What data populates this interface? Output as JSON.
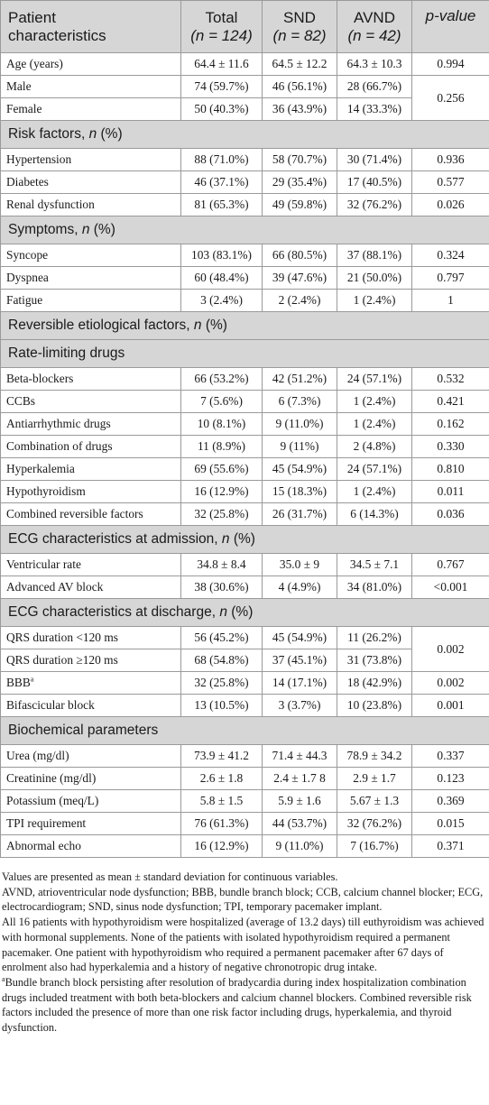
{
  "header": {
    "col0_line1": "Patient",
    "col0_line2": "characteristics",
    "total_line1": "Total",
    "total_line2": "(n = 124)",
    "snd_line1": "SND",
    "snd_line2": "(n = 82)",
    "avnd_line1": "AVND",
    "avnd_line2": "(n = 42)",
    "pvalue": "p-value"
  },
  "demographics": [
    {
      "label": "Age (years)",
      "total": "64.4 ± 11.6",
      "snd": "64.5 ± 12.2",
      "avnd": "64.3 ± 10.3",
      "p": "0.994"
    },
    {
      "label": "Male",
      "total": "74 (59.7%)",
      "snd": "46 (56.1%)",
      "avnd": "28 (66.7%)",
      "p": "0.256"
    },
    {
      "label": "Female",
      "total": "50 (40.3%)",
      "snd": "36 (43.9%)",
      "avnd": "14 (33.3%)",
      "p": ""
    }
  ],
  "risk_factors": {
    "title": "Risk factors, n (%)",
    "rows": [
      {
        "label": "Hypertension",
        "total": "88 (71.0%)",
        "snd": "58 (70.7%)",
        "avnd": "30 (71.4%)",
        "p": "0.936"
      },
      {
        "label": "Diabetes",
        "total": "46 (37.1%)",
        "snd": "29 (35.4%)",
        "avnd": "17 (40.5%)",
        "p": "0.577"
      },
      {
        "label": "Renal dysfunction",
        "total": "81 (65.3%)",
        "snd": "49 (59.8%)",
        "avnd": "32 (76.2%)",
        "p": "0.026"
      }
    ]
  },
  "symptoms": {
    "title": "Symptoms, n (%)",
    "rows": [
      {
        "label": "Syncope",
        "total": "103 (83.1%)",
        "snd": "66 (80.5%)",
        "avnd": "37 (88.1%)",
        "p": "0.324"
      },
      {
        "label": "Dyspnea",
        "total": "60 (48.4%)",
        "snd": "39 (47.6%)",
        "avnd": "21 (50.0%)",
        "p": "0.797"
      },
      {
        "label": "Fatigue",
        "total": "3 (2.4%)",
        "snd": "2 (2.4%)",
        "avnd": "1 (2.4%)",
        "p": "1"
      }
    ]
  },
  "reversible": {
    "title": "Reversible etiological factors, n (%)"
  },
  "rate_limiting": {
    "title": "Rate-limiting drugs",
    "rows": [
      {
        "label": "Beta-blockers",
        "total": "66 (53.2%)",
        "snd": "42 (51.2%)",
        "avnd": "24 (57.1%)",
        "p": "0.532"
      },
      {
        "label": "CCBs",
        "total": "7 (5.6%)",
        "snd": "6 (7.3%)",
        "avnd": "1 (2.4%)",
        "p": "0.421"
      },
      {
        "label": "Antiarrhythmic drugs",
        "total": "10 (8.1%)",
        "snd": "9 (11.0%)",
        "avnd": "1 (2.4%)",
        "p": "0.162"
      },
      {
        "label": "Combination of drugs",
        "total": "11 (8.9%)",
        "snd": "9 (11%)",
        "avnd": "2 (4.8%)",
        "p": "0.330"
      },
      {
        "label": "Hyperkalemia",
        "total": "69 (55.6%)",
        "snd": "45 (54.9%)",
        "avnd": "24 (57.1%)",
        "p": "0.810"
      },
      {
        "label": "Hypothyroidism",
        "total": "16 (12.9%)",
        "snd": "15 (18.3%)",
        "avnd": "1 (2.4%)",
        "p": "0.011"
      },
      {
        "label": "Combined reversible factors",
        "total": "32 (25.8%)",
        "snd": "26 (31.7%)",
        "avnd": "6 (14.3%)",
        "p": "0.036"
      }
    ]
  },
  "ecg_admission": {
    "title": "ECG characteristics at admission, n (%)",
    "rows": [
      {
        "label": "Ventricular rate",
        "total": "34.8 ± 8.4",
        "snd": "35.0 ± 9",
        "avnd": "34.5 ± 7.1",
        "p": "0.767"
      },
      {
        "label": "Advanced AV block",
        "total": "38 (30.6%)",
        "snd": "4 (4.9%)",
        "avnd": "34 (81.0%)",
        "p": "<0.001"
      }
    ]
  },
  "ecg_discharge": {
    "title": "ECG characteristics at discharge, n (%)",
    "rows": [
      {
        "label": "QRS duration <120 ms",
        "total": "56 (45.2%)",
        "snd": "45 (54.9%)",
        "avnd": "11 (26.2%)",
        "p": "0.002"
      },
      {
        "label": "QRS duration ≥120 ms",
        "total": "68 (54.8%)",
        "snd": "37 (45.1%)",
        "avnd": "31 (73.8%)",
        "p": ""
      },
      {
        "label": "BBB",
        "sup": "a",
        "total": "32 (25.8%)",
        "snd": "14 (17.1%)",
        "avnd": "18 (42.9%)",
        "p": "0.002"
      },
      {
        "label": "Bifascicular block",
        "total": "13 (10.5%)",
        "snd": "3 (3.7%)",
        "avnd": "10 (23.8%)",
        "p": "0.001"
      }
    ]
  },
  "biochemical": {
    "title": "Biochemical parameters",
    "rows": [
      {
        "label": "Urea (mg/dl)",
        "total": "73.9 ± 41.2",
        "snd": "71.4 ± 44.3",
        "avnd": "78.9 ± 34.2",
        "p": "0.337"
      },
      {
        "label": "Creatinine (mg/dl)",
        "total": "2.6 ± 1.8",
        "snd": "2.4 ± 1.7 8",
        "avnd": "2.9 ± 1.7",
        "p": "0.123"
      },
      {
        "label": "Potassium (meq/L)",
        "total": "5.8 ± 1.5",
        "snd": "5.9 ± 1.6",
        "avnd": "5.67 ± 1.3",
        "p": "0.369"
      },
      {
        "label": "TPI requirement",
        "total": "76 (61.3%)",
        "snd": "44 (53.7%)",
        "avnd": "32 (76.2%)",
        "p": "0.015"
      },
      {
        "label": "Abnormal echo",
        "total": "16 (12.9%)",
        "snd": "9 (11.0%)",
        "avnd": "7 (16.7%)",
        "p": "0.371"
      }
    ]
  },
  "footnotes": {
    "values_note": "Values are presented as mean ± standard deviation for continuous variables.",
    "abbreviations": "AVND, atrioventricular node dysfunction; BBB, bundle branch block; CCB, calcium channel blocker; ECG, electrocardiogram; SND, sinus node dysfunction; TPI, temporary pacemaker implant.",
    "hypothyroid_note": "All 16 patients with hypothyroidism were hospitalized (average of 13.2 days) till euthyroidism was achieved with hormonal supplements. None of the patients with isolated hypothyroidism required a permanent pacemaker. One patient with hypothyroidism who required a permanent pacemaker after 67 days of enrolment also had hyperkalemia and a history of negative chronotropic drug intake.",
    "bbb_note_sup": "a",
    "bbb_note": "Bundle branch block persisting after resolution of bradycardia during index hospitalization combination drugs included treatment with both beta-blockers and calcium channel blockers. Combined reversible risk factors included the presence of more than one risk factor including drugs, hyperkalemia, and thyroid dysfunction."
  }
}
